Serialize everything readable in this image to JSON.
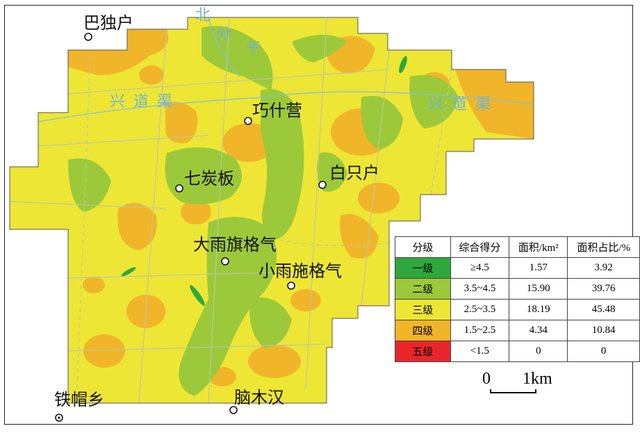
{
  "towns": [
    {
      "key": "badouhu",
      "name": "巴独户"
    },
    {
      "key": "qiaoshiying",
      "name": "巧什营"
    },
    {
      "key": "qitanban",
      "name": "七炭板"
    },
    {
      "key": "baizhihu",
      "name": "白只户"
    },
    {
      "key": "dayuqigeqi",
      "name": "大雨旗格气"
    },
    {
      "key": "xiaoyushigeqi",
      "name": "小雨施格气"
    },
    {
      "key": "tiemaoxiang",
      "name": "铁帽乡"
    },
    {
      "key": "naomuhan",
      "name": "脑木汉"
    }
  ],
  "canals": {
    "west": "兴道渠",
    "east": "兴道渠",
    "north": [
      "北",
      "分",
      "干"
    ]
  },
  "legend": {
    "headers": [
      "分级",
      "综合得分",
      "面积/km²",
      "面积占比/%"
    ],
    "rows": [
      {
        "grade": "一级",
        "score": "≥4.5",
        "area": "1.57",
        "pct": "3.92",
        "color": "#2ea83c"
      },
      {
        "grade": "二级",
        "score": "3.5~4.5",
        "area": "15.90",
        "pct": "39.76",
        "color": "#9cc93a"
      },
      {
        "grade": "三级",
        "score": "2.5~3.5",
        "area": "18.19",
        "pct": "45.48",
        "color": "#eee635"
      },
      {
        "grade": "四级",
        "score": "1.5~2.5",
        "area": "4.34",
        "pct": "10.84",
        "color": "#f1b52a"
      },
      {
        "grade": "五级",
        "score": "<1.5",
        "area": "0",
        "pct": "0",
        "color": "#e8262a"
      }
    ]
  },
  "scale_bar": {
    "start": "0",
    "end": "1km"
  },
  "colors": {
    "road": "#b9c7a8",
    "canal": "#78c1e6",
    "outline": "#333333"
  }
}
